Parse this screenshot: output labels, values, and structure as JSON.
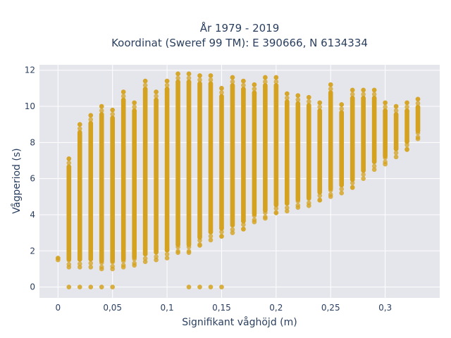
{
  "chart_data": {
    "type": "scatter",
    "title_line1": "År 1979 - 2019",
    "title_line2": "Koordinat (Sweref 99 TM): E 390666, N 6134334",
    "xlabel": "Signifikant våghöjd (m)",
    "ylabel": "Vågperiod (s)",
    "xlim": [
      -0.017,
      0.35
    ],
    "ylim": [
      -0.6,
      12.3
    ],
    "x_ticks": [
      0,
      0.05,
      0.1,
      0.15,
      0.2,
      0.25,
      0.3
    ],
    "x_tick_labels": [
      "0",
      "0,05",
      "0,1",
      "0,15",
      "0,2",
      "0,25",
      "0,3"
    ],
    "y_ticks": [
      0,
      2,
      4,
      6,
      8,
      10,
      12
    ],
    "y_tick_labels": [
      "0",
      "2",
      "4",
      "6",
      "8",
      "10",
      "12"
    ],
    "grid": true,
    "plot_bg": "#e5e5ec",
    "marker_color": "#d4a21f",
    "columns": [
      {
        "x": 0.0,
        "ymin": 1.5,
        "ymax": 1.6,
        "zero": false
      },
      {
        "x": 0.01,
        "ymin": 1.1,
        "ymax": 7.1,
        "zero": true
      },
      {
        "x": 0.02,
        "ymin": 1.1,
        "ymax": 9.0,
        "zero": true
      },
      {
        "x": 0.03,
        "ymin": 1.1,
        "ymax": 9.5,
        "zero": true
      },
      {
        "x": 0.04,
        "ymin": 1.0,
        "ymax": 10.0,
        "zero": true
      },
      {
        "x": 0.05,
        "ymin": 1.0,
        "ymax": 9.8,
        "zero": true
      },
      {
        "x": 0.06,
        "ymin": 1.1,
        "ymax": 10.8,
        "zero": false
      },
      {
        "x": 0.07,
        "ymin": 1.2,
        "ymax": 10.2,
        "zero": false
      },
      {
        "x": 0.08,
        "ymin": 1.4,
        "ymax": 11.4,
        "zero": false
      },
      {
        "x": 0.09,
        "ymin": 1.5,
        "ymax": 10.8,
        "zero": false
      },
      {
        "x": 0.1,
        "ymin": 1.6,
        "ymax": 11.4,
        "zero": false
      },
      {
        "x": 0.11,
        "ymin": 1.9,
        "ymax": 11.8,
        "zero": false
      },
      {
        "x": 0.12,
        "ymin": 1.9,
        "ymax": 11.8,
        "zero": true
      },
      {
        "x": 0.13,
        "ymin": 2.3,
        "ymax": 11.7,
        "zero": true
      },
      {
        "x": 0.14,
        "ymin": 2.6,
        "ymax": 11.7,
        "zero": true
      },
      {
        "x": 0.15,
        "ymin": 2.8,
        "ymax": 11.0,
        "zero": true
      },
      {
        "x": 0.16,
        "ymin": 3.0,
        "ymax": 11.6,
        "zero": false
      },
      {
        "x": 0.17,
        "ymin": 3.2,
        "ymax": 11.4,
        "zero": false
      },
      {
        "x": 0.18,
        "ymin": 3.6,
        "ymax": 11.2,
        "zero": false
      },
      {
        "x": 0.19,
        "ymin": 3.8,
        "ymax": 11.6,
        "zero": false
      },
      {
        "x": 0.2,
        "ymin": 4.1,
        "ymax": 11.6,
        "zero": false
      },
      {
        "x": 0.21,
        "ymin": 4.2,
        "ymax": 10.7,
        "zero": false
      },
      {
        "x": 0.22,
        "ymin": 4.4,
        "ymax": 10.6,
        "zero": false
      },
      {
        "x": 0.23,
        "ymin": 4.5,
        "ymax": 10.5,
        "zero": false
      },
      {
        "x": 0.24,
        "ymin": 4.8,
        "ymax": 10.2,
        "zero": false
      },
      {
        "x": 0.25,
        "ymin": 5.0,
        "ymax": 11.2,
        "zero": false
      },
      {
        "x": 0.26,
        "ymin": 5.2,
        "ymax": 10.1,
        "zero": false
      },
      {
        "x": 0.27,
        "ymin": 5.5,
        "ymax": 10.9,
        "zero": false
      },
      {
        "x": 0.28,
        "ymin": 6.0,
        "ymax": 10.9,
        "zero": false
      },
      {
        "x": 0.29,
        "ymin": 6.5,
        "ymax": 10.9,
        "zero": false
      },
      {
        "x": 0.3,
        "ymin": 6.8,
        "ymax": 10.2,
        "zero": false
      },
      {
        "x": 0.31,
        "ymin": 7.2,
        "ymax": 10.0,
        "zero": false
      },
      {
        "x": 0.32,
        "ymin": 7.6,
        "ymax": 10.2,
        "zero": false
      },
      {
        "x": 0.33,
        "ymin": 8.2,
        "ymax": 10.4,
        "zero": false
      }
    ]
  }
}
